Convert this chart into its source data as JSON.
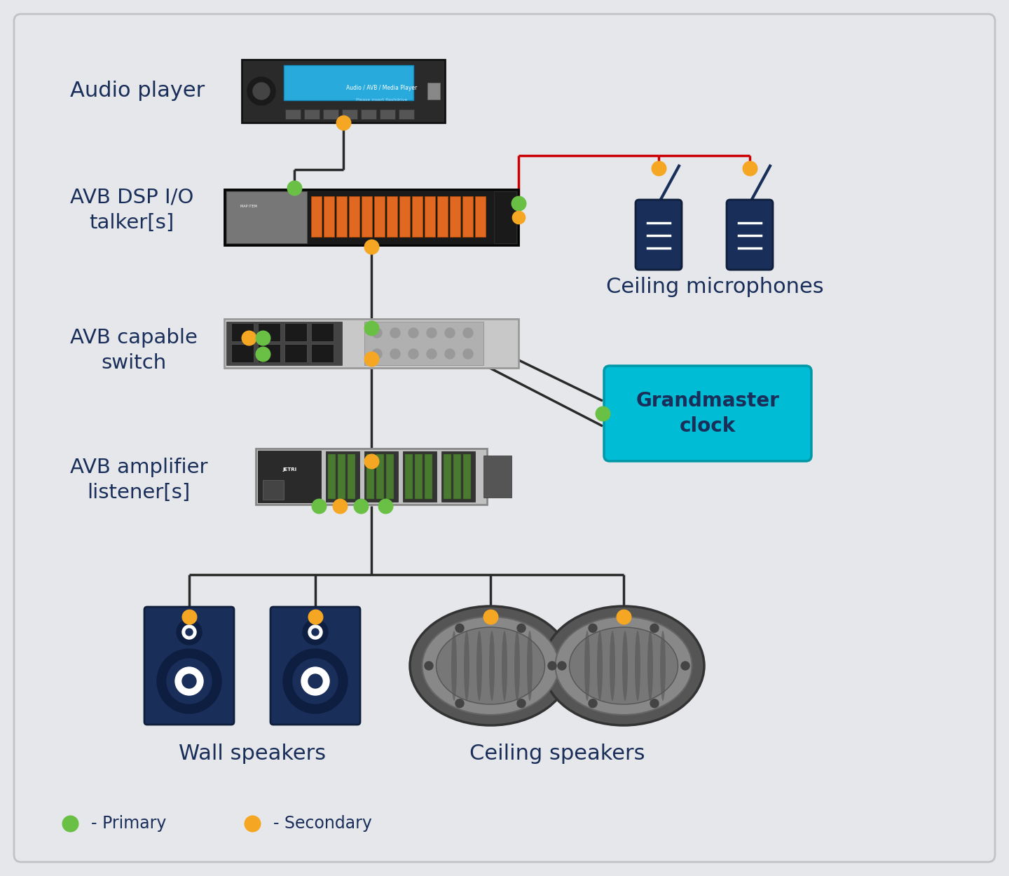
{
  "bg_color": "#e5e7eb",
  "primary_color": "#6abf45",
  "secondary_color": "#f5a623",
  "line_color": "#2a2a2a",
  "red_line_color": "#cc0000",
  "text_color": "#1a2e5a",
  "grandmaster_bg": "#00bcd4",
  "grandmaster_text": "#1a2e5a",
  "label_audio_player": "Audio player",
  "label_avb_dsp": "AVB DSP I/O\ntalker[s]",
  "label_avb_switch": "AVB capable\nswitch",
  "label_avb_amp": "AVB amplifier\nlistener[s]",
  "label_wall_speakers": "Wall speakers",
  "label_ceiling_speakers": "Ceiling speakers",
  "label_ceiling_mics": "Ceiling microphones",
  "label_grandmaster": "Grandmaster\nclock",
  "legend_primary": "- Primary",
  "legend_secondary": "- Secondary",
  "figsize": [
    14.4,
    12.5
  ],
  "dpi": 100
}
